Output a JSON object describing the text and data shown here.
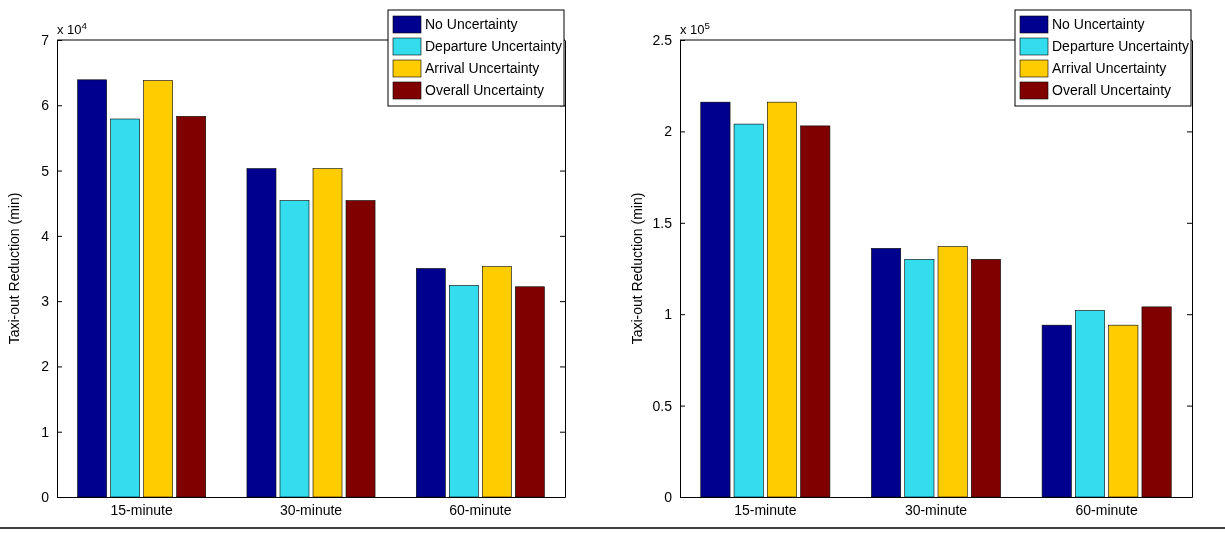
{
  "chart_data": [
    {
      "type": "bar",
      "ylabel": "Taxi-out Reduction (min)",
      "annotations": [
        "x 10$^{4}$"
      ],
      "categories": [
        "15-minute",
        "30-minute",
        "60-minute"
      ],
      "series": [
        {
          "name": "No Uncertainty",
          "color": "#00008f",
          "values": [
            6.39,
            5.03,
            3.5
          ]
        },
        {
          "name": "Departure Uncertainty",
          "color": "#33ddee",
          "values": [
            5.79,
            4.54,
            3.24
          ]
        },
        {
          "name": "Arrival Uncertainty",
          "color": "#ffcc00",
          "values": [
            6.38,
            5.03,
            3.53
          ]
        },
        {
          "name": "Overall Uncertainty",
          "color": "#800000",
          "values": [
            5.83,
            4.54,
            3.22
          ]
        }
      ],
      "ylim": [
        0,
        7
      ],
      "yticks": [
        0,
        1,
        2,
        3,
        4,
        5,
        6,
        7
      ],
      "legend": "top right"
    },
    {
      "type": "bar",
      "ylabel": "Taxi-out Reduction (min)",
      "annotations": [
        "x 10$^{5}$"
      ],
      "categories": [
        "15-minute",
        "30-minute",
        "60-minute"
      ],
      "series": [
        {
          "name": "No Uncertainty",
          "color": "#00008f",
          "values": [
            2.16,
            1.36,
            0.94
          ]
        },
        {
          "name": "Departure Uncertainty",
          "color": "#33ddee",
          "values": [
            2.04,
            1.3,
            1.02
          ]
        },
        {
          "name": "Arrival Uncertainty",
          "color": "#ffcc00",
          "values": [
            2.16,
            1.37,
            0.94
          ]
        },
        {
          "name": "Overall Uncertainty",
          "color": "#800000",
          "values": [
            2.03,
            1.3,
            1.04
          ]
        }
      ],
      "ylim": [
        0,
        2.5
      ],
      "yticks": [
        0,
        {
          "value": 0.5,
          "label": "0.5"
        },
        1,
        {
          "value": 1.5,
          "label": "1.5"
        },
        2,
        {
          "value": 2.5,
          "label": "2.5"
        }
      ],
      "legend": "top right"
    }
  ]
}
